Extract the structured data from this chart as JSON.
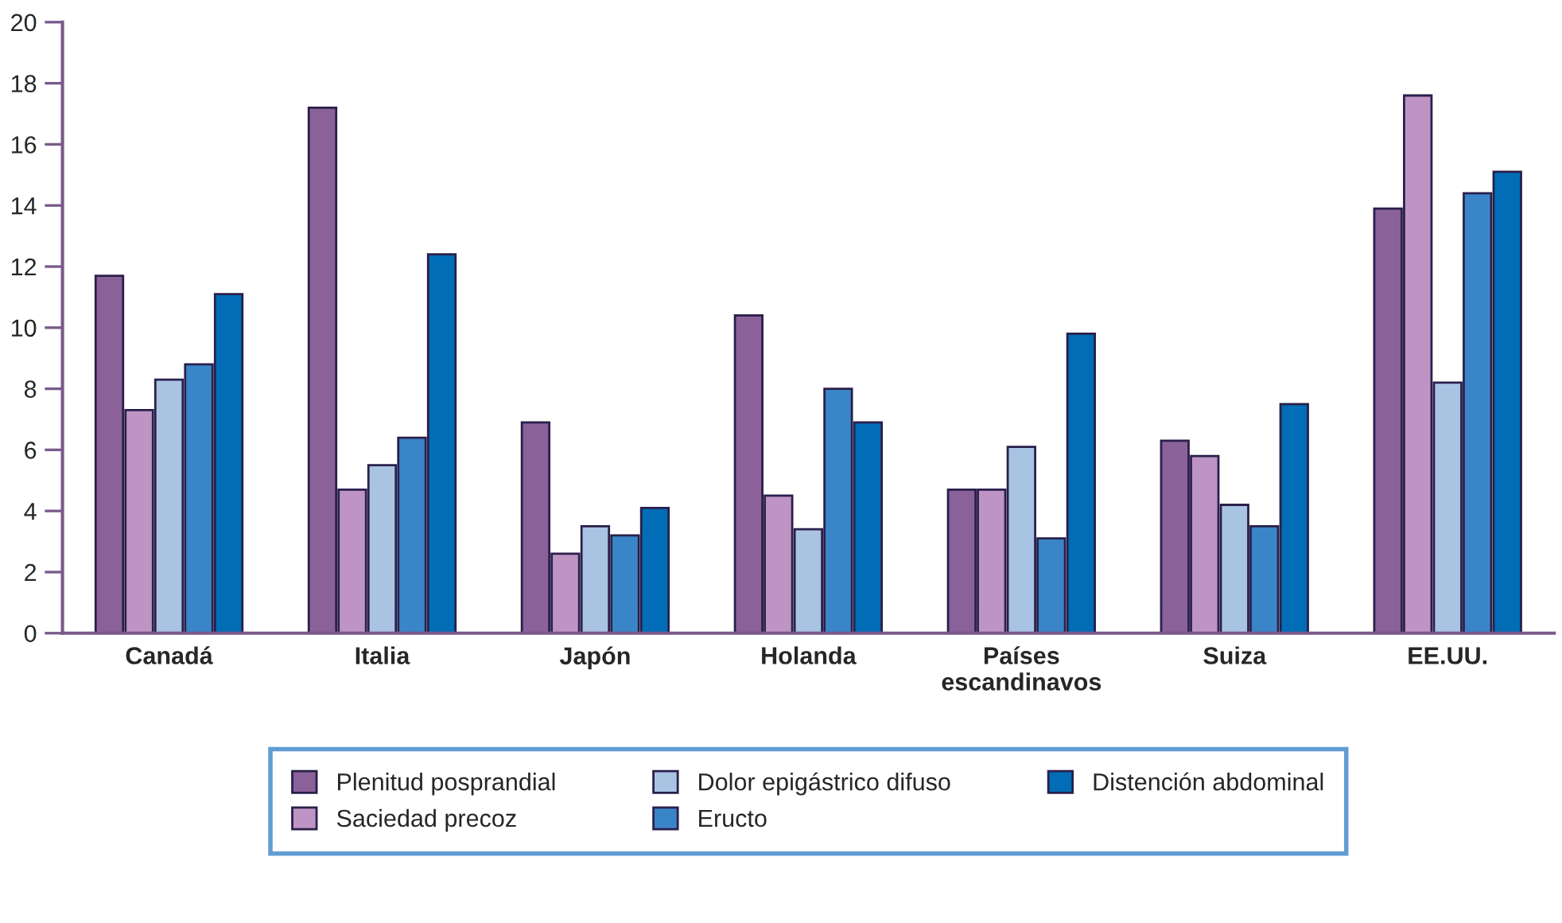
{
  "chart_data": {
    "type": "bar",
    "categories": [
      "Canadá",
      "Italia",
      "Japón",
      "Holanda",
      "Países\nescandinavos",
      "Suiza",
      "EE.UU."
    ],
    "series": [
      {
        "name": "Plenitud posprandial",
        "color": "#8a6199",
        "values": [
          11.7,
          17.2,
          6.9,
          10.4,
          4.7,
          6.3,
          13.9
        ]
      },
      {
        "name": "Saciedad precoz",
        "color": "#bd94c4",
        "values": [
          7.3,
          4.7,
          2.6,
          4.5,
          4.7,
          5.8,
          17.6
        ]
      },
      {
        "name": "Dolor epigástrico difuso",
        "color": "#a9c3e3",
        "values": [
          8.3,
          5.5,
          3.5,
          3.4,
          6.1,
          4.2,
          8.2
        ]
      },
      {
        "name": "Eructo",
        "color": "#3a85c8",
        "values": [
          8.8,
          6.4,
          3.2,
          8.0,
          3.1,
          3.5,
          14.4
        ]
      },
      {
        "name": "Distención abdominal",
        "color": "#006db6",
        "values": [
          11.1,
          12.4,
          4.1,
          6.9,
          9.8,
          7.5,
          15.1
        ]
      }
    ],
    "ylim": [
      0,
      20
    ],
    "yticks": [
      0,
      2,
      4,
      6,
      8,
      10,
      12,
      14,
      16,
      18,
      20
    ],
    "grid": false,
    "legend": "bottom"
  }
}
